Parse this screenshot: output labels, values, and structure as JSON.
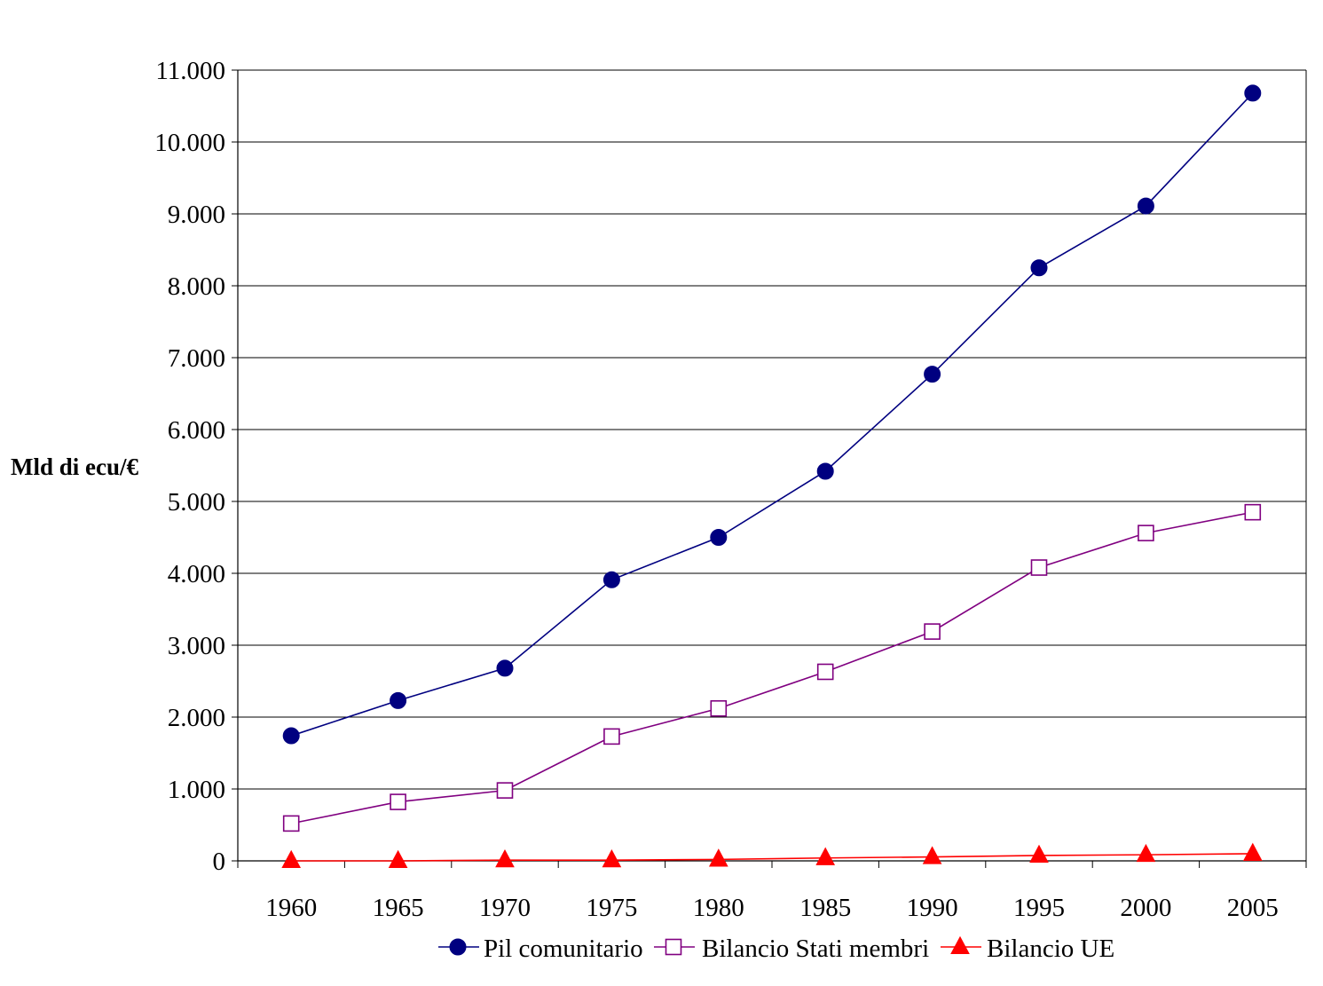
{
  "chart_data": {
    "type": "line",
    "title": "",
    "xlabel": "",
    "ylabel": "Mld di ecu/€",
    "categories": [
      "1960",
      "1965",
      "1970",
      "1975",
      "1980",
      "1985",
      "1990",
      "1995",
      "2000",
      "2005"
    ],
    "ylim": [
      0,
      11000
    ],
    "yticks": [
      0,
      1000,
      2000,
      3000,
      4000,
      5000,
      6000,
      7000,
      8000,
      9000,
      10000,
      11000
    ],
    "ytick_labels": [
      "0",
      "1.000",
      "2.000",
      "3.000",
      "4.000",
      "5.000",
      "6.000",
      "7.000",
      "8.000",
      "9.000",
      "10.000",
      "11.000"
    ],
    "grid": true,
    "legend_position": "bottom",
    "series": [
      {
        "name": "Pil comunitario",
        "marker": "circle",
        "color": "#000080",
        "line_color": "#000080",
        "values": [
          1740,
          2230,
          2680,
          3910,
          4500,
          5420,
          6770,
          8250,
          9110,
          10680
        ]
      },
      {
        "name": "Bilancio Stati membri",
        "marker": "square-open",
        "color": "#800080",
        "line_color": "#800080",
        "values": [
          520,
          820,
          980,
          1730,
          2120,
          2630,
          3190,
          4080,
          4560,
          4850
        ]
      },
      {
        "name": "Bilancio UE",
        "marker": "triangle",
        "color": "#ff0000",
        "line_color": "#ff0000",
        "values": [
          0,
          0,
          10,
          10,
          20,
          40,
          55,
          75,
          85,
          100
        ]
      }
    ]
  }
}
